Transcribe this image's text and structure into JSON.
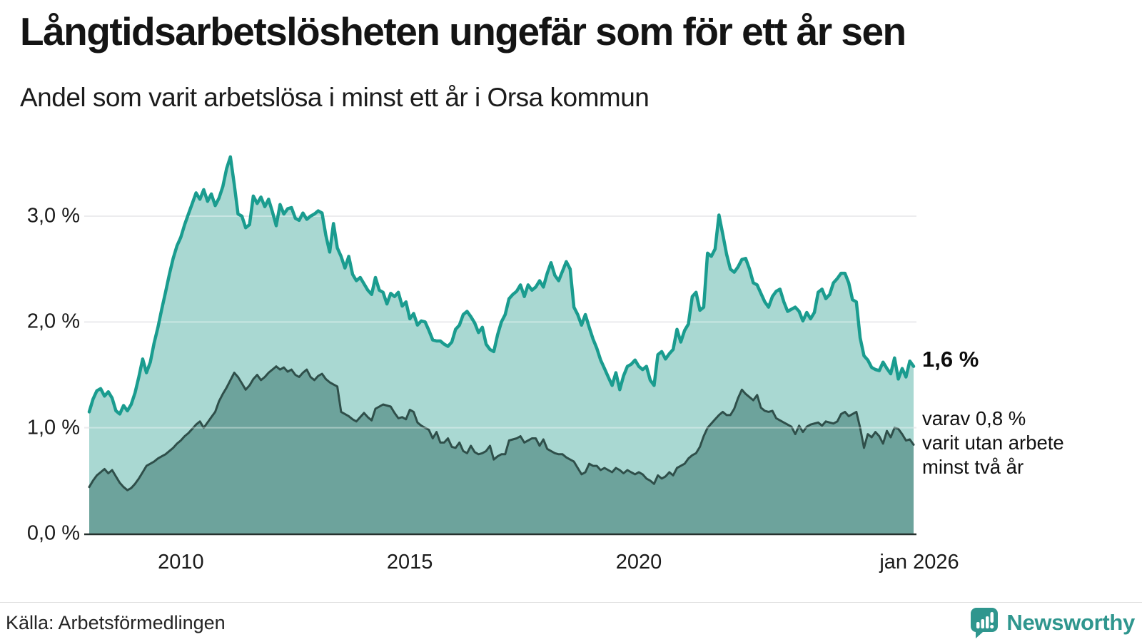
{
  "header": {
    "title": "Långtidsarbetslösheten ungefär som för ett år sen",
    "subtitle": "Andel som varit arbetslösa i minst ett år i Orsa kommun"
  },
  "chart_data": {
    "type": "area",
    "title": "Långtidsarbetslösheten ungefär som för ett år sen",
    "subtitle": "Andel som varit arbetslösa i minst ett år i Orsa kommun",
    "unit": "%",
    "x_start": "2008-01",
    "x_end": "2026-01",
    "x_frequency": "monthly",
    "ylim": [
      0,
      3.6
    ],
    "grid": "horizontal",
    "y_ticks": [
      {
        "label": "0,0 %",
        "value": 0
      },
      {
        "label": "1,0 %",
        "value": 1
      },
      {
        "label": "2,0 %",
        "value": 2
      },
      {
        "label": "3,0 %",
        "value": 3
      }
    ],
    "x_ticks": [
      {
        "label": "2010",
        "month_index": 24
      },
      {
        "label": "2015",
        "month_index": 84
      },
      {
        "label": "2020",
        "month_index": 144
      },
      {
        "label": "jan 2026",
        "month_index": 216
      }
    ],
    "series": [
      {
        "name": "Andel arbetslösa minst ett år",
        "line_color": "#1a9c8f",
        "fill_color": "#a9d8d2",
        "values": [
          1.15,
          1.27,
          1.35,
          1.37,
          1.3,
          1.34,
          1.28,
          1.16,
          1.13,
          1.21,
          1.16,
          1.22,
          1.33,
          1.48,
          1.65,
          1.52,
          1.62,
          1.8,
          1.95,
          2.12,
          2.28,
          2.45,
          2.6,
          2.72,
          2.8,
          2.92,
          3.02,
          3.12,
          3.22,
          3.16,
          3.25,
          3.14,
          3.21,
          3.1,
          3.17,
          3.28,
          3.45,
          3.56,
          3.3,
          3.02,
          3.0,
          2.89,
          2.92,
          3.19,
          3.12,
          3.18,
          3.09,
          3.16,
          3.04,
          2.91,
          3.11,
          3.02,
          3.07,
          3.08,
          2.98,
          2.96,
          3.03,
          2.97,
          3.0,
          3.02,
          3.05,
          3.03,
          2.82,
          2.66,
          2.93,
          2.7,
          2.62,
          2.51,
          2.62,
          2.45,
          2.39,
          2.42,
          2.36,
          2.3,
          2.26,
          2.42,
          2.3,
          2.28,
          2.17,
          2.27,
          2.24,
          2.28,
          2.15,
          2.19,
          2.03,
          2.08,
          1.97,
          2.01,
          2.0,
          1.92,
          1.83,
          1.82,
          1.82,
          1.79,
          1.77,
          1.81,
          1.93,
          1.97,
          2.07,
          2.1,
          2.05,
          1.99,
          1.9,
          1.95,
          1.79,
          1.74,
          1.72,
          1.88,
          2.0,
          2.07,
          2.22,
          2.26,
          2.29,
          2.35,
          2.24,
          2.35,
          2.3,
          2.33,
          2.39,
          2.33,
          2.46,
          2.56,
          2.44,
          2.39,
          2.48,
          2.57,
          2.5,
          2.14,
          2.07,
          1.97,
          2.07,
          1.95,
          1.84,
          1.75,
          1.64,
          1.56,
          1.48,
          1.4,
          1.52,
          1.36,
          1.49,
          1.58,
          1.6,
          1.64,
          1.58,
          1.55,
          1.58,
          1.45,
          1.4,
          1.69,
          1.72,
          1.65,
          1.7,
          1.74,
          1.93,
          1.81,
          1.92,
          1.98,
          2.24,
          2.28,
          2.11,
          2.14,
          2.65,
          2.62,
          2.69,
          3.01,
          2.83,
          2.64,
          2.5,
          2.47,
          2.52,
          2.59,
          2.6,
          2.5,
          2.37,
          2.35,
          2.27,
          2.19,
          2.14,
          2.24,
          2.29,
          2.31,
          2.19,
          2.1,
          2.12,
          2.14,
          2.1,
          2.01,
          2.09,
          2.03,
          2.09,
          2.28,
          2.31,
          2.22,
          2.26,
          2.37,
          2.41,
          2.46,
          2.46,
          2.37,
          2.21,
          2.19,
          1.85,
          1.68,
          1.64,
          1.57,
          1.55,
          1.54,
          1.62,
          1.56,
          1.51,
          1.66,
          1.46,
          1.56,
          1.48,
          1.63,
          1.58
        ]
      },
      {
        "name": "varav utan arbete minst två år",
        "line_color": "#2f4f4a",
        "fill_color": "#6da39c",
        "values": [
          0.44,
          0.5,
          0.55,
          0.58,
          0.61,
          0.57,
          0.6,
          0.54,
          0.48,
          0.44,
          0.41,
          0.43,
          0.47,
          0.52,
          0.58,
          0.64,
          0.66,
          0.68,
          0.71,
          0.73,
          0.75,
          0.78,
          0.81,
          0.85,
          0.88,
          0.92,
          0.95,
          0.99,
          1.03,
          1.06,
          1.0,
          1.05,
          1.1,
          1.15,
          1.25,
          1.32,
          1.38,
          1.45,
          1.52,
          1.48,
          1.42,
          1.36,
          1.4,
          1.46,
          1.5,
          1.45,
          1.48,
          1.52,
          1.55,
          1.58,
          1.55,
          1.57,
          1.53,
          1.55,
          1.5,
          1.48,
          1.52,
          1.55,
          1.48,
          1.45,
          1.49,
          1.51,
          1.46,
          1.43,
          1.41,
          1.39,
          1.15,
          1.13,
          1.11,
          1.08,
          1.06,
          1.1,
          1.14,
          1.1,
          1.07,
          1.18,
          1.2,
          1.22,
          1.21,
          1.2,
          1.14,
          1.09,
          1.1,
          1.08,
          1.17,
          1.15,
          1.05,
          1.02,
          1.0,
          0.98,
          0.9,
          0.96,
          0.86,
          0.86,
          0.9,
          0.82,
          0.81,
          0.86,
          0.78,
          0.76,
          0.83,
          0.77,
          0.75,
          0.76,
          0.78,
          0.83,
          0.7,
          0.73,
          0.75,
          0.75,
          0.88,
          0.89,
          0.9,
          0.92,
          0.86,
          0.88,
          0.9,
          0.9,
          0.83,
          0.89,
          0.8,
          0.78,
          0.76,
          0.75,
          0.75,
          0.72,
          0.7,
          0.68,
          0.62,
          0.56,
          0.58,
          0.66,
          0.64,
          0.64,
          0.6,
          0.62,
          0.6,
          0.58,
          0.62,
          0.6,
          0.57,
          0.6,
          0.58,
          0.56,
          0.58,
          0.56,
          0.52,
          0.5,
          0.47,
          0.55,
          0.52,
          0.54,
          0.58,
          0.55,
          0.62,
          0.64,
          0.66,
          0.71,
          0.74,
          0.76,
          0.82,
          0.92,
          1.0,
          1.04,
          1.08,
          1.12,
          1.15,
          1.12,
          1.12,
          1.18,
          1.28,
          1.36,
          1.32,
          1.29,
          1.26,
          1.31,
          1.19,
          1.16,
          1.15,
          1.16,
          1.09,
          1.07,
          1.05,
          1.03,
          1.01,
          0.94,
          1.02,
          0.96,
          1.01,
          1.03,
          1.04,
          1.05,
          1.02,
          1.06,
          1.05,
          1.04,
          1.06,
          1.13,
          1.15,
          1.11,
          1.13,
          1.15,
          1.0,
          0.81,
          0.94,
          0.91,
          0.96,
          0.92,
          0.85,
          0.97,
          0.91,
          1.0,
          0.99,
          0.94,
          0.88,
          0.89,
          0.84
        ]
      }
    ],
    "end_labels": {
      "total": "1,6 %",
      "two_year_lines": [
        "varav 0,8 %",
        "varit utan arbete",
        "minst två år"
      ]
    }
  },
  "footer": {
    "source": "Källa: Arbetsförmedlingen",
    "brand": "Newsworthy"
  },
  "colors": {
    "accent_teal": "#1a9c8f",
    "light_fill": "#a9d8d2",
    "dark_fill": "#6da39c",
    "dark_line": "#2f4f4a",
    "gridline": "#e1e1e5",
    "axis_line": "#26312e",
    "brand_teal": "#2f968e"
  }
}
